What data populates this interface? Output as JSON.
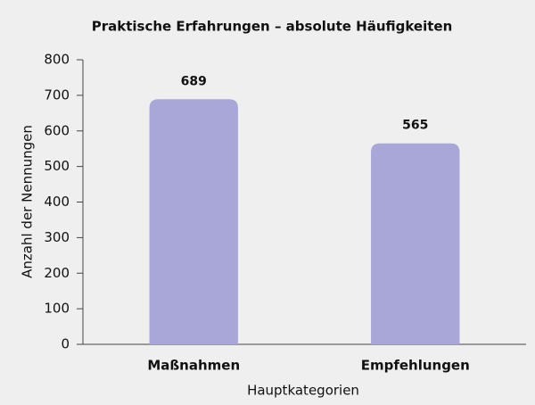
{
  "chart_data": {
    "type": "bar",
    "title": "Praktische Erfahrungen – absolute Häufigkeiten",
    "categories": [
      "Maßnahmen",
      "Empfehlungen"
    ],
    "values": [
      689,
      565
    ],
    "color": "#a9a6d8",
    "xlabel": "Hauptkategorien",
    "ylabel": "Anzahl der Nennungen",
    "ylim": [
      0,
      800
    ],
    "yticks": [
      0,
      100,
      200,
      300,
      400,
      500,
      600,
      700,
      800
    ],
    "grid": false
  }
}
